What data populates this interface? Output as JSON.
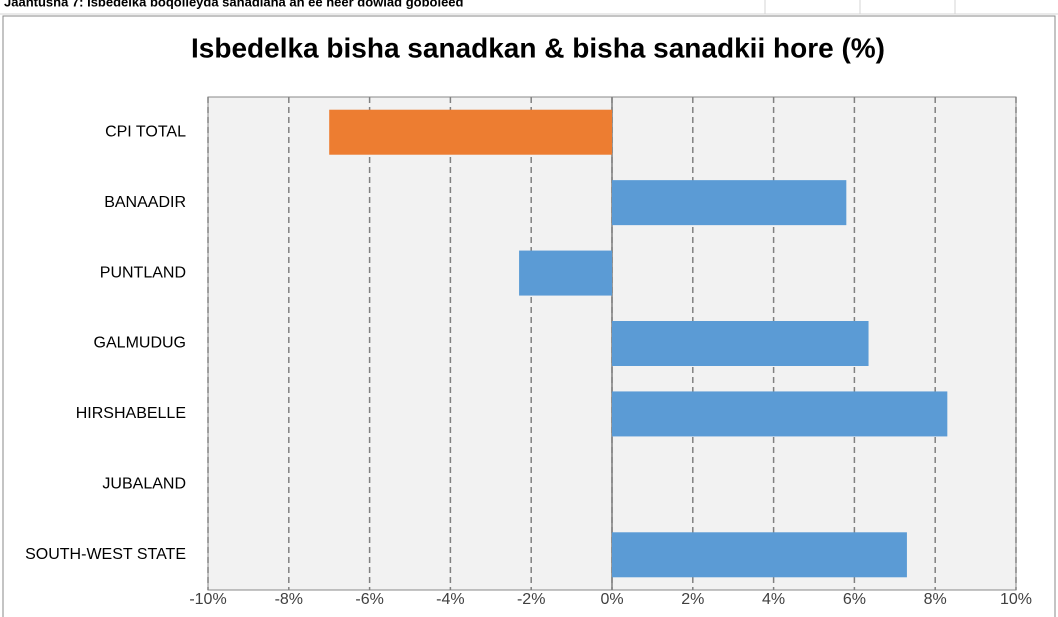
{
  "sheet_caption": "Jaantusha 7: Isbedelka boqolleyda sanadlaha ah ee heer dowlad goboleed",
  "chart_data": {
    "type": "hbar",
    "title": "Isbedelka bisha sanadkan & bisha sanadkii hore (%)",
    "categories": [
      "CPI TOTAL",
      "BANAADIR",
      "PUNTLAND",
      "GALMUDUG",
      "HIRSHABELLE",
      "JUBALAND",
      "SOUTH-WEST STATE"
    ],
    "values": [
      -7.0,
      5.8,
      -2.3,
      6.35,
      8.3,
      null,
      7.3
    ],
    "colors": [
      "#ed7d31",
      "#5b9bd5",
      "#5b9bd5",
      "#5b9bd5",
      "#5b9bd5",
      "#5b9bd5",
      "#5b9bd5"
    ],
    "xlim": [
      -10,
      10
    ],
    "xticks": [
      {
        "value": -10,
        "label": "-10%"
      },
      {
        "value": -8,
        "label": "-8%"
      },
      {
        "value": -6,
        "label": "-6%"
      },
      {
        "value": -4,
        "label": "-4%"
      },
      {
        "value": -2,
        "label": "-2%"
      },
      {
        "value": 0,
        "label": "0%"
      },
      {
        "value": 2,
        "label": "2%"
      },
      {
        "value": 4,
        "label": "4%"
      },
      {
        "value": 6,
        "label": "6%"
      },
      {
        "value": 8,
        "label": "8%"
      },
      {
        "value": 10,
        "label": "10%"
      }
    ],
    "grid": true
  }
}
